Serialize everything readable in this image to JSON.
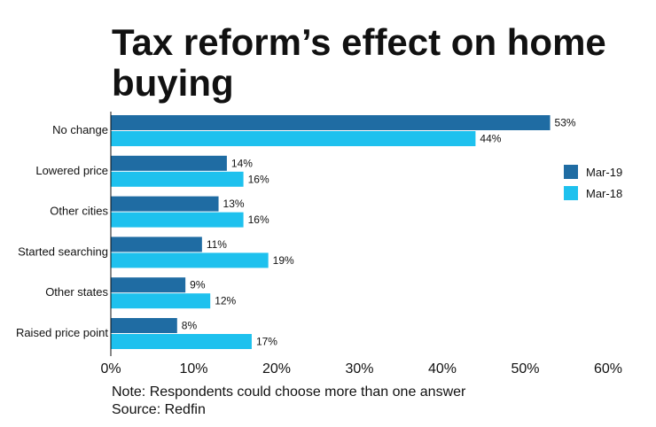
{
  "chart_data": {
    "type": "bar",
    "orientation": "horizontal",
    "title": "Tax reform’s effect on home buying",
    "title_lines": [
      "Tax reform’s effect on home",
      "buying"
    ],
    "categories": [
      "No change",
      "Lowered price",
      "Other cities",
      "Started searching",
      "Other states",
      "Raised price point"
    ],
    "series": [
      {
        "name": "Mar-19",
        "values": [
          53,
          14,
          13,
          11,
          9,
          8
        ],
        "labels": [
          "53%",
          "14%",
          "13%",
          "11%",
          "9%",
          "8%"
        ],
        "color": "#1f6ca3"
      },
      {
        "name": "Mar-18",
        "values": [
          44,
          16,
          16,
          19,
          12,
          17
        ],
        "labels": [
          "44%",
          "16%",
          "16%",
          "19%",
          "12%",
          "17%"
        ],
        "color": "#1ec1ee"
      }
    ],
    "xlim": [
      0,
      60
    ],
    "xticks": [
      0,
      10,
      20,
      30,
      40,
      50,
      60
    ],
    "xtick_labels": [
      "0%",
      "10%",
      "20%",
      "30%",
      "40%",
      "50%",
      "60%"
    ],
    "grid": false,
    "legend": "right",
    "notes": [
      "Note: Respondents could choose more than one answer",
      "Source: Redfin"
    ]
  }
}
